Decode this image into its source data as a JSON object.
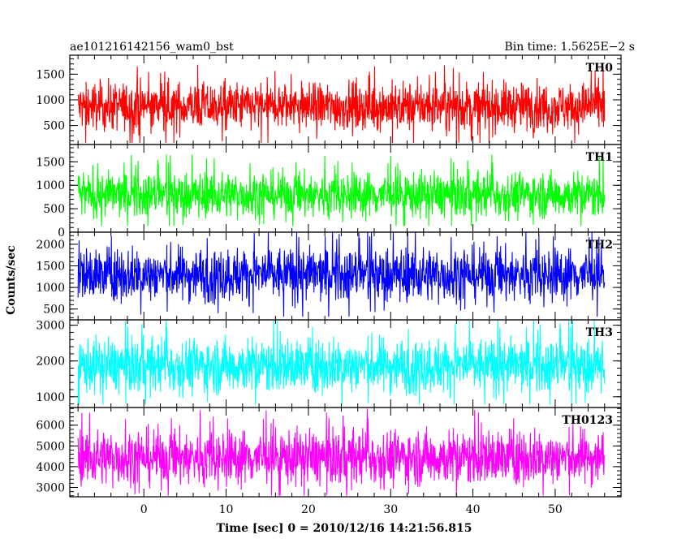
{
  "chart_data": {
    "type": "line",
    "title_left": "ae101216142156_wam0_bst",
    "title_right": "Bin time: 1.5625E−2 s",
    "xlabel": "Time [sec] 0 = 2010/12/16 14:21:56.815",
    "ylabel": "Counts/sec",
    "xlim": [
      -9,
      58
    ],
    "data_x_range": [
      -8,
      56
    ],
    "x_ticks": [
      0,
      10,
      20,
      30,
      40,
      50
    ],
    "x_tick_labels": [
      "0",
      "10",
      "20",
      "30",
      "40",
      "50"
    ],
    "grid": false,
    "panels": [
      {
        "name": "TH0",
        "color": "#ff0000",
        "ylim": [
          130,
          1870
        ],
        "y_ticks": [
          500,
          1000,
          1500
        ],
        "y_tick_labels": [
          "500",
          "1000",
          "1500"
        ],
        "signal": {
          "mean": 870,
          "spread": 230,
          "min": 160,
          "max": 1840
        }
      },
      {
        "name": "TH1",
        "color": "#00ff00",
        "ylim": [
          0,
          1870
        ],
        "y_ticks": [
          0,
          500,
          1000,
          1500
        ],
        "y_tick_labels": [
          "0",
          "500",
          "1000",
          "1500"
        ],
        "signal": {
          "mean": 800,
          "spread": 240,
          "min": 130,
          "max": 1750
        }
      },
      {
        "name": "TH2",
        "color": "#0000ff",
        "ylim": [
          250,
          2280
        ],
        "y_ticks": [
          500,
          1000,
          1500,
          2000
        ],
        "y_tick_labels": [
          "500",
          "1000",
          "1500",
          "2000"
        ],
        "signal": {
          "mean": 1300,
          "spread": 310,
          "min": 320,
          "max": 2270
        }
      },
      {
        "name": "TH3",
        "color": "#00ffff",
        "ylim": [
          700,
          3150
        ],
        "y_ticks": [
          1000,
          2000,
          3000
        ],
        "y_tick_labels": [
          "1000",
          "2000",
          "3000"
        ],
        "signal": {
          "mean": 1870,
          "spread": 380,
          "min": 780,
          "max": 3130
        }
      },
      {
        "name": "TH0123",
        "color": "#ff00ff",
        "ylim": [
          2550,
          6850
        ],
        "y_ticks": [
          3000,
          4000,
          5000,
          6000
        ],
        "y_tick_labels": [
          "3000",
          "4000",
          "5000",
          "6000"
        ],
        "signal": {
          "mean": 4450,
          "spread": 660,
          "min": 2600,
          "max": 6800
        }
      }
    ]
  }
}
